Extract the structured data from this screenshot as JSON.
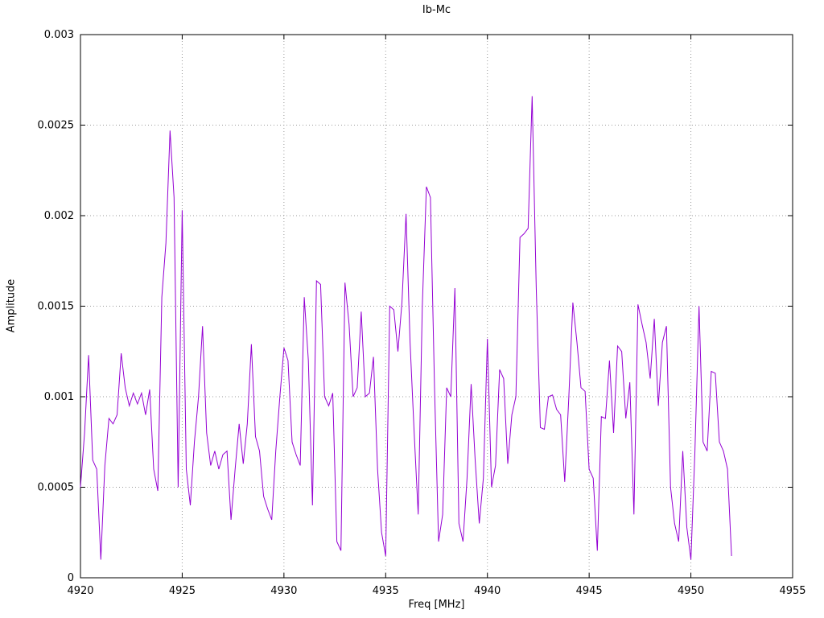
{
  "chart_data": {
    "type": "line",
    "title": "Ib-Mc",
    "xlabel": "Freq [MHz]",
    "ylabel": "Amplitude",
    "xlim": [
      4920,
      4955
    ],
    "ylim": [
      0,
      0.003
    ],
    "xticks": [
      4920,
      4925,
      4930,
      4935,
      4940,
      4945,
      4950,
      4955
    ],
    "xtick_labels": [
      "4920",
      "4925",
      "4930",
      "4935",
      "4940",
      "4945",
      "4950",
      "4955"
    ],
    "yticks": [
      0,
      0.0005,
      0.001,
      0.0015,
      0.002,
      0.0025,
      0.003
    ],
    "ytick_labels": [
      "0",
      "0.0005",
      "0.001",
      "0.0015",
      "0.002",
      "0.0025",
      "0.003"
    ],
    "grid": "dotted",
    "legend": "none",
    "line_color": "#9400d3",
    "grid_color": "#9a9a9a",
    "series": [
      {
        "name": "Ib-Mc",
        "x_start": 4920,
        "x_step": 0.2,
        "values": [
          0.0005,
          0.0008,
          0.00123,
          0.00065,
          0.0006,
          0.0001,
          0.00062,
          0.00088,
          0.00085,
          0.0009,
          0.00124,
          0.00105,
          0.00095,
          0.00102,
          0.00096,
          0.00102,
          0.0009,
          0.00104,
          0.0006,
          0.00048,
          0.00155,
          0.00185,
          0.00247,
          0.0021,
          0.0005,
          0.00203,
          0.0006,
          0.0004,
          0.00075,
          0.001,
          0.00139,
          0.0008,
          0.00062,
          0.0007,
          0.0006,
          0.00068,
          0.0007,
          0.00032,
          0.0006,
          0.00085,
          0.00063,
          0.00085,
          0.00129,
          0.00078,
          0.0007,
          0.00045,
          0.00038,
          0.00032,
          0.0007,
          0.001,
          0.00127,
          0.0012,
          0.00075,
          0.00068,
          0.00062,
          0.00155,
          0.0012,
          0.0004,
          0.00164,
          0.00162,
          0.001,
          0.00095,
          0.00102,
          0.0002,
          0.00015,
          0.00163,
          0.0014,
          0.001,
          0.00105,
          0.00147,
          0.001,
          0.00102,
          0.00122,
          0.0006,
          0.00025,
          0.00012,
          0.0015,
          0.00148,
          0.00125,
          0.00152,
          0.00201,
          0.0013,
          0.0008,
          0.00035,
          0.0015,
          0.00216,
          0.0021,
          0.00105,
          0.0002,
          0.00035,
          0.00105,
          0.001,
          0.0016,
          0.0003,
          0.0002,
          0.00055,
          0.00107,
          0.00065,
          0.0003,
          0.00055,
          0.00132,
          0.0005,
          0.00062,
          0.00115,
          0.0011,
          0.00063,
          0.0009,
          0.001,
          0.00188,
          0.0019,
          0.00193,
          0.00266,
          0.0016,
          0.00083,
          0.00082,
          0.001,
          0.00101,
          0.00093,
          0.0009,
          0.00053,
          0.001,
          0.00152,
          0.0013,
          0.00105,
          0.00103,
          0.0006,
          0.00055,
          0.00015,
          0.00089,
          0.00088,
          0.0012,
          0.0008,
          0.00128,
          0.00125,
          0.00088,
          0.00108,
          0.00035,
          0.00151,
          0.0014,
          0.0013,
          0.0011,
          0.00143,
          0.00095,
          0.0013,
          0.00139,
          0.0005,
          0.0003,
          0.0002,
          0.0007,
          0.00028,
          0.0001,
          0.0007,
          0.0015,
          0.00075,
          0.0007,
          0.00114,
          0.00113,
          0.00075,
          0.0007,
          0.0006,
          0.00012
        ]
      }
    ]
  }
}
